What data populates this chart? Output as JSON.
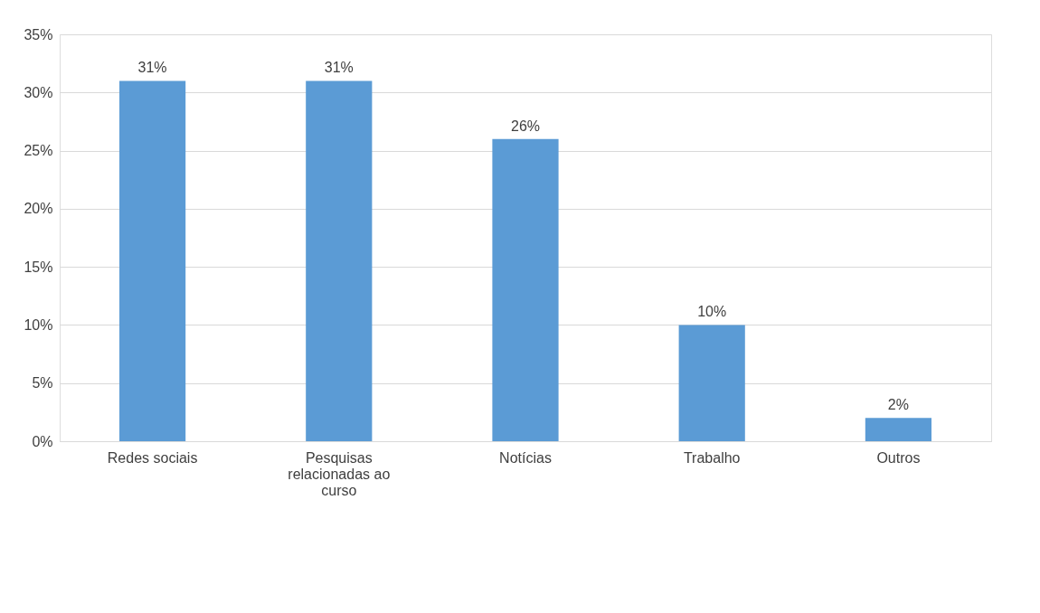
{
  "chart_data": {
    "type": "bar",
    "categories": [
      "Redes sociais",
      "Pesquisas relacionadas ao curso",
      "Notícias",
      "Trabalho",
      "Outros"
    ],
    "values": [
      31,
      31,
      26,
      10,
      2
    ],
    "value_labels": [
      "31%",
      "31%",
      "26%",
      "10%",
      "2%"
    ],
    "color": "#5b9bd5",
    "ylim": [
      0,
      35
    ],
    "yticks": [
      {
        "value": 0,
        "label": "0%"
      },
      {
        "value": 5,
        "label": "5%"
      },
      {
        "value": 10,
        "label": "10%"
      },
      {
        "value": 15,
        "label": "15%"
      },
      {
        "value": 20,
        "label": "20%"
      },
      {
        "value": 25,
        "label": "25%"
      },
      {
        "value": 30,
        "label": "30%"
      },
      {
        "value": 35,
        "label": "35%"
      }
    ],
    "grid": "y"
  }
}
